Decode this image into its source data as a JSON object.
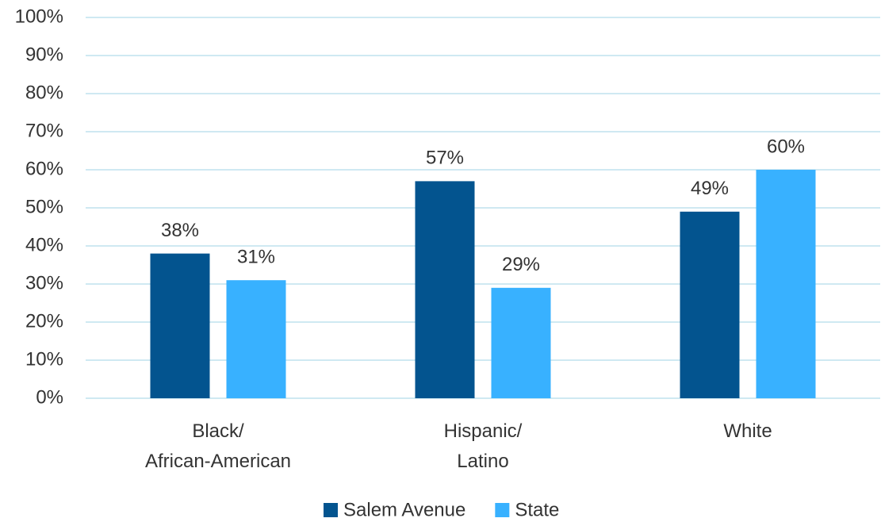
{
  "chart_data": {
    "type": "bar",
    "categories": [
      "Black/\nAfrican-American",
      "Hispanic/\nLatino",
      "White"
    ],
    "series": [
      {
        "name": "Salem Avenue",
        "color": "#03548f",
        "values": [
          38,
          57,
          49
        ],
        "value_labels": [
          "38%",
          "57%",
          "49%"
        ]
      },
      {
        "name": "State",
        "color": "#38b1ff",
        "values": [
          31,
          29,
          60
        ],
        "value_labels": [
          "31%",
          "29%",
          "60%"
        ]
      }
    ],
    "ylim": [
      0,
      100
    ],
    "yticks": [
      {
        "value": 0,
        "label": "0%"
      },
      {
        "value": 10,
        "label": "10%"
      },
      {
        "value": 20,
        "label": "20%"
      },
      {
        "value": 30,
        "label": "30%"
      },
      {
        "value": 40,
        "label": "40%"
      },
      {
        "value": 50,
        "label": "50%"
      },
      {
        "value": 60,
        "label": "60%"
      },
      {
        "value": 70,
        "label": "70%"
      },
      {
        "value": 80,
        "label": "80%"
      },
      {
        "value": 90,
        "label": "90%"
      },
      {
        "value": 100,
        "label": "100%"
      }
    ],
    "grid": true,
    "legend": "bottom"
  }
}
